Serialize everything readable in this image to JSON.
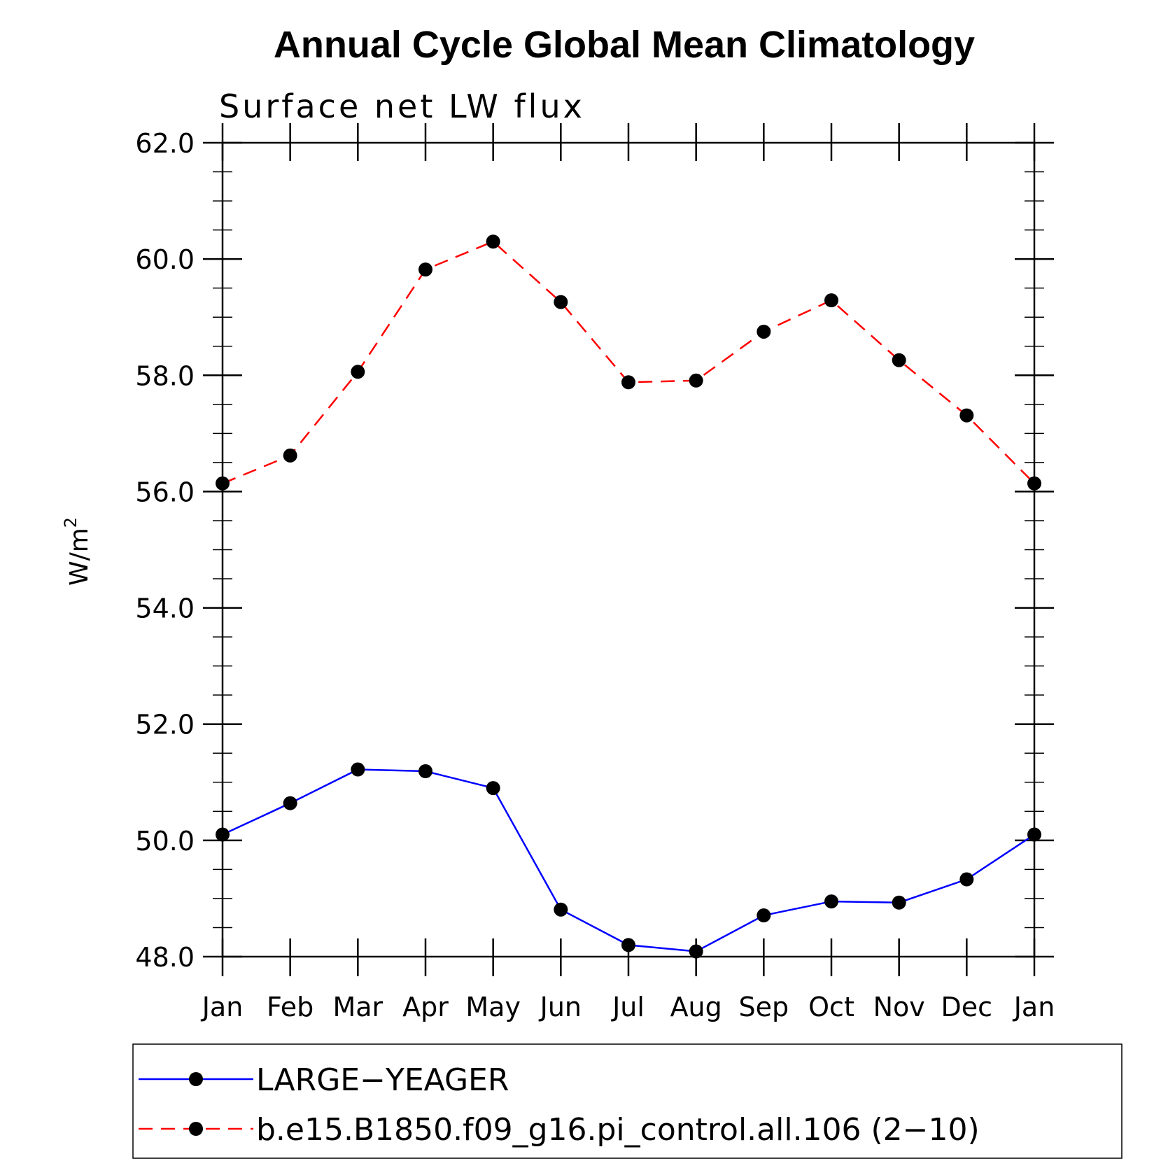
{
  "chart_data": {
    "type": "line",
    "title": "Annual Cycle Global Mean Climatology",
    "subtitle": "Surface net LW flux",
    "ylabel": "W/m",
    "ylabel_sup": "2",
    "xlabel": "",
    "categories": [
      "Jan",
      "Feb",
      "Mar",
      "Apr",
      "May",
      "Jun",
      "Jul",
      "Aug",
      "Sep",
      "Oct",
      "Nov",
      "Dec",
      "Jan"
    ],
    "ylim": [
      48.0,
      62.0
    ],
    "yticks": [
      "48.0",
      "50.0",
      "52.0",
      "54.0",
      "56.0",
      "58.0",
      "60.0",
      "62.0"
    ],
    "series": [
      {
        "name": "LARGE−YEAGER",
        "color": "#0000ff",
        "dash": "solid",
        "values": [
          50.1,
          50.64,
          51.22,
          51.19,
          50.9,
          48.81,
          48.2,
          48.09,
          48.71,
          48.95,
          48.93,
          49.33,
          50.1
        ]
      },
      {
        "name": "b.e15.B1850.f09_g16.pi_control.all.106 (2−10)",
        "color": "#ff0000",
        "dash": "dashed",
        "values": [
          56.14,
          56.62,
          58.06,
          59.82,
          60.3,
          59.26,
          57.88,
          57.91,
          58.75,
          59.29,
          58.26,
          57.31,
          56.14
        ]
      }
    ],
    "grid": false,
    "legend": "bottom"
  }
}
